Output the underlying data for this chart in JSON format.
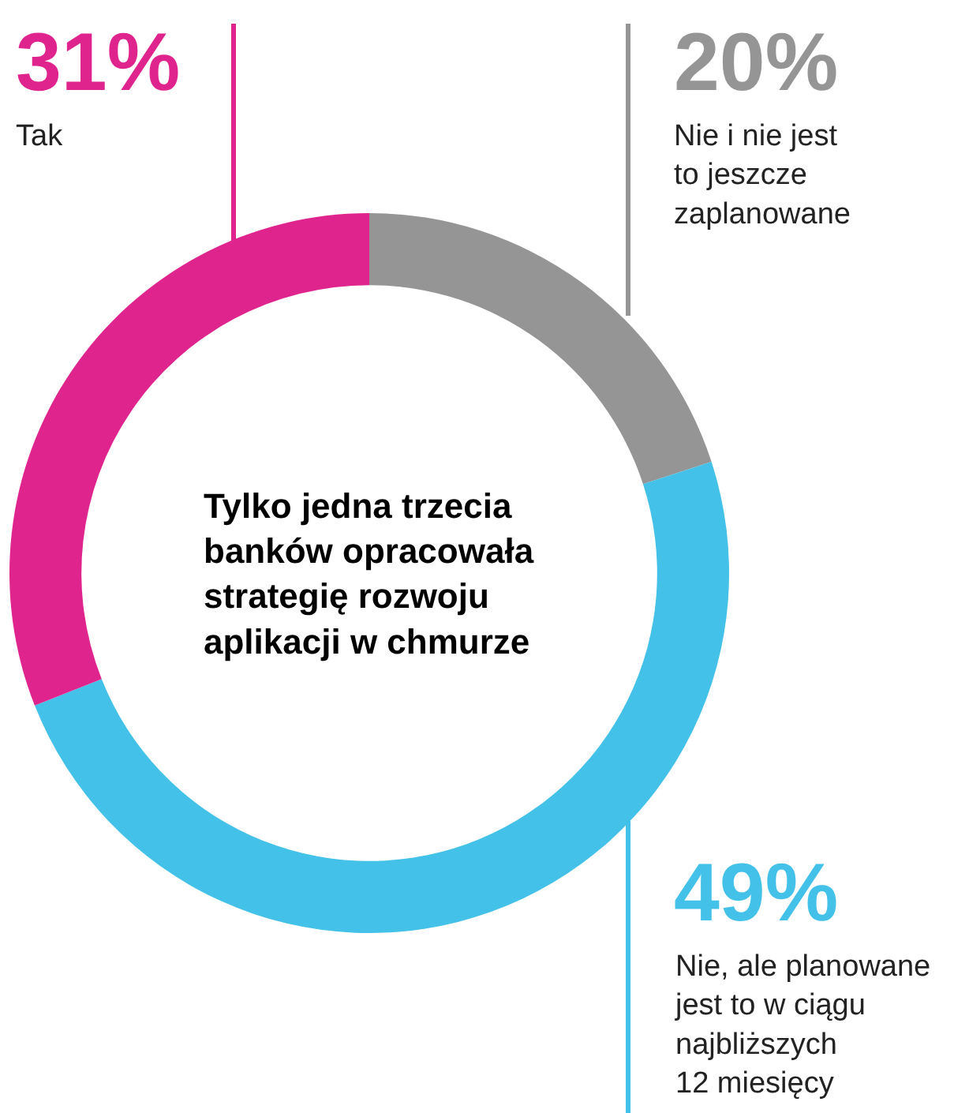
{
  "chart_data": {
    "type": "donut",
    "title": "Tylko jedna trzecia\nbanków opracowała\nstrategię rozwoju\naplikacji w chmurze",
    "categories": [
      "Nie i nie jest\nto jeszcze\nzaplanowane",
      "Nie, ale planowane\njest to w ciągu\nnajbliższych\n12 miesięcy",
      "Tak"
    ],
    "values": [
      20,
      49,
      31
    ],
    "value_labels": [
      "20%",
      "49%",
      "31%"
    ],
    "colors": [
      "#959595",
      "#44c1e8",
      "#e0248e"
    ],
    "legend": false
  }
}
